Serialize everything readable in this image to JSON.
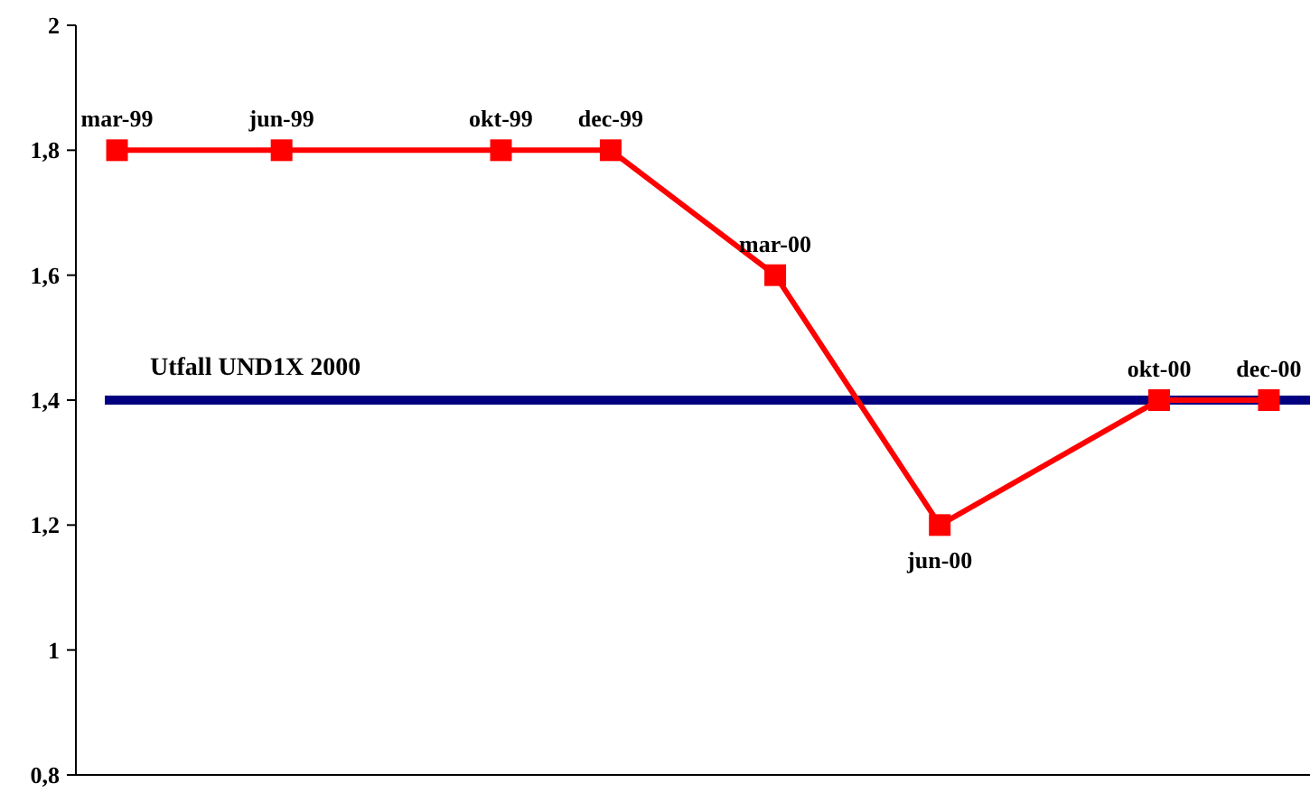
{
  "chart_data": {
    "type": "line",
    "categories": [
      null,
      null,
      null,
      null,
      null,
      null,
      null,
      null,
      null,
      null,
      null,
      null,
      null,
      null,
      null,
      null,
      null,
      null,
      null,
      null,
      null,
      null
    ],
    "series": [
      {
        "color": "#ff0000",
        "values": [
          1.8,
          null,
          null,
          1.8,
          null,
          null,
          null,
          1.8,
          null,
          1.8,
          null,
          null,
          1.6,
          null,
          null,
          1.2,
          null,
          null,
          null,
          1.4,
          null,
          1.4
        ],
        "value_labels": [
          "mar-99",
          null,
          null,
          "jun-99",
          null,
          null,
          null,
          "okt-99",
          null,
          "dec-99",
          null,
          null,
          "mar-00",
          null,
          null,
          "jun-00",
          null,
          null,
          null,
          "okt-00",
          null,
          "dec-00"
        ]
      }
    ],
    "marker": "square",
    "line_style": "solid",
    "ylim": [
      0.8,
      2
    ],
    "yticks": [
      {
        "value": 0.8,
        "label": "0,8"
      },
      {
        "value": 1,
        "label": "1"
      },
      {
        "value": 1.2,
        "label": "1,2"
      },
      {
        "value": 1.4,
        "label": "1,4"
      },
      {
        "value": 1.6,
        "label": "1,6"
      },
      {
        "value": 1.8,
        "label": "1,8"
      },
      {
        "value": 2,
        "label": "2"
      }
    ],
    "tick_labels": "y",
    "ref_lines": [
      {
        "axis": "y",
        "value": 1.4,
        "label": "Utfall UND1X 2000",
        "color": "#000080",
        "line_style": "solid"
      }
    ]
  }
}
